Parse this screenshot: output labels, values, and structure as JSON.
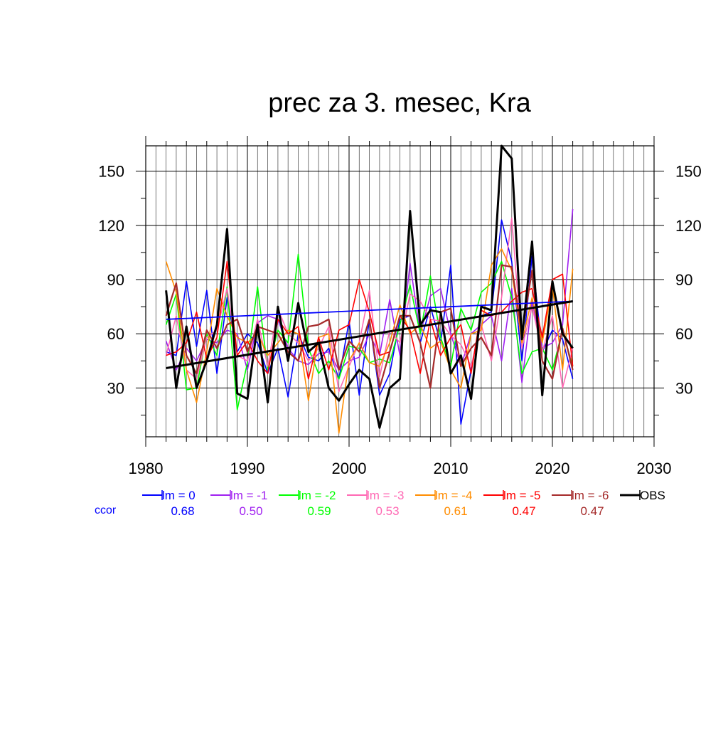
{
  "chart_data": {
    "type": "line",
    "title": "prec za 3. mesec, Kra",
    "xlabel": "",
    "ylabel": "",
    "xlim": [
      1980,
      2030
    ],
    "ylim": [
      3,
      164
    ],
    "x_ticks": [
      1980,
      1990,
      2000,
      2010,
      2020,
      2030
    ],
    "y_ticks": [
      30,
      60,
      90,
      120,
      150
    ],
    "grid": true,
    "legend_position": "bottom",
    "x": [
      1982,
      1983,
      1984,
      1985,
      1986,
      1987,
      1988,
      1989,
      1990,
      1991,
      1992,
      1993,
      1994,
      1995,
      1996,
      1997,
      1998,
      1999,
      2000,
      2001,
      2002,
      2003,
      2004,
      2005,
      2006,
      2007,
      2008,
      2009,
      2010,
      2011,
      2012,
      2013,
      2014,
      2015,
      2016,
      2017,
      2018,
      2019,
      2020,
      2021,
      2022
    ],
    "series": [
      {
        "name": "lm = 0",
        "color": "#0000ff",
        "width": 1.6,
        "values": [
          50,
          48,
          89,
          53,
          84,
          38,
          80,
          50,
          60,
          55,
          38,
          52,
          25,
          60,
          47,
          45,
          52,
          35,
          67,
          26,
          68,
          26,
          38,
          68,
          70,
          55,
          75,
          55,
          98,
          10,
          40,
          70,
          72,
          123,
          100,
          45,
          103,
          50,
          62,
          57,
          35
        ],
        "trend": [
          68,
          78
        ]
      },
      {
        "name": "lm = -1",
        "color": "#a020f0",
        "width": 1.6,
        "values": [
          56,
          40,
          52,
          45,
          57,
          55,
          62,
          60,
          40,
          66,
          70,
          68,
          52,
          45,
          43,
          49,
          50,
          40,
          45,
          47,
          60,
          48,
          79,
          48,
          99,
          60,
          81,
          85,
          60,
          42,
          60,
          65,
          70,
          45,
          85,
          33,
          78,
          52,
          55,
          65,
          129
        ]
      },
      {
        "name": "lm = -2",
        "color": "#00ff00",
        "width": 1.6,
        "values": [
          65,
          82,
          29,
          30,
          60,
          48,
          86,
          18,
          44,
          86,
          40,
          62,
          55,
          104,
          52,
          38,
          45,
          35,
          53,
          52,
          44,
          46,
          44,
          65,
          87,
          60,
          92,
          58,
          42,
          74,
          62,
          83,
          88,
          100,
          80,
          38,
          50,
          52,
          40,
          62,
          42
        ]
      },
      {
        "name": "lm = -3",
        "color": "#ff69b4",
        "width": 1.6,
        "values": [
          48,
          70,
          40,
          35,
          58,
          62,
          85,
          48,
          45,
          68,
          42,
          74,
          60,
          55,
          45,
          52,
          64,
          28,
          42,
          55,
          84,
          36,
          62,
          55,
          82,
          78,
          68,
          67,
          59,
          54,
          42,
          65,
          45,
          80,
          124,
          52,
          75,
          50,
          70,
          30,
          52
        ]
      },
      {
        "name": "lm = -4",
        "color": "#ff8c00",
        "width": 1.6,
        "values": [
          100,
          83,
          40,
          22,
          50,
          85,
          70,
          58,
          55,
          60,
          48,
          55,
          62,
          60,
          23,
          58,
          60,
          5,
          45,
          55,
          44,
          42,
          55,
          76,
          60,
          65,
          52,
          56,
          40,
          30,
          60,
          62,
          98,
          107,
          95,
          55,
          80,
          55,
          86,
          40,
          96
        ]
      },
      {
        "name": "lm = -5",
        "color": "#ff0000",
        "width": 1.6,
        "values": [
          48,
          50,
          55,
          72,
          46,
          58,
          100,
          48,
          56,
          45,
          38,
          68,
          60,
          64,
          35,
          58,
          40,
          62,
          65,
          90,
          72,
          48,
          50,
          70,
          62,
          38,
          68,
          48,
          58,
          65,
          38,
          73,
          70,
          72,
          78,
          83,
          85,
          58,
          90,
          93,
          42
        ]
      },
      {
        "name": "lm = -6",
        "color": "#a52a2a",
        "width": 2.2,
        "values": [
          70,
          88,
          48,
          38,
          62,
          52,
          65,
          68,
          50,
          64,
          62,
          60,
          50,
          45,
          64,
          65,
          68,
          40,
          56,
          50,
          68,
          30,
          50,
          70,
          70,
          55,
          30,
          72,
          74,
          42,
          52,
          58,
          48,
          98,
          97,
          60,
          95,
          45,
          35,
          63,
          40
        ]
      },
      {
        "name": "OBS",
        "color": "#000000",
        "width": 3,
        "values": [
          84,
          30,
          64,
          30,
          45,
          65,
          118,
          27,
          24,
          65,
          22,
          75,
          45,
          77,
          50,
          55,
          30,
          23,
          32,
          40,
          35,
          8,
          30,
          35,
          128,
          65,
          73,
          72,
          38,
          48,
          24,
          75,
          73,
          164,
          157,
          57,
          111,
          26,
          89,
          60,
          52
        ],
        "trend": [
          41,
          78
        ]
      }
    ],
    "legend": {
      "ccor_label": "ccor",
      "entries": [
        {
          "label": "lm = 0",
          "ccor": "0.68"
        },
        {
          "label": "lm = -1",
          "ccor": "0.50"
        },
        {
          "label": "lm = -2",
          "ccor": "0.59"
        },
        {
          "label": "lm = -3",
          "ccor": "0.53"
        },
        {
          "label": "lm = -4",
          "ccor": "0.61"
        },
        {
          "label": "lm = -5",
          "ccor": "0.47"
        },
        {
          "label": "lm = -6",
          "ccor": "0.47"
        },
        {
          "label": "OBS",
          "ccor": ""
        }
      ]
    }
  }
}
